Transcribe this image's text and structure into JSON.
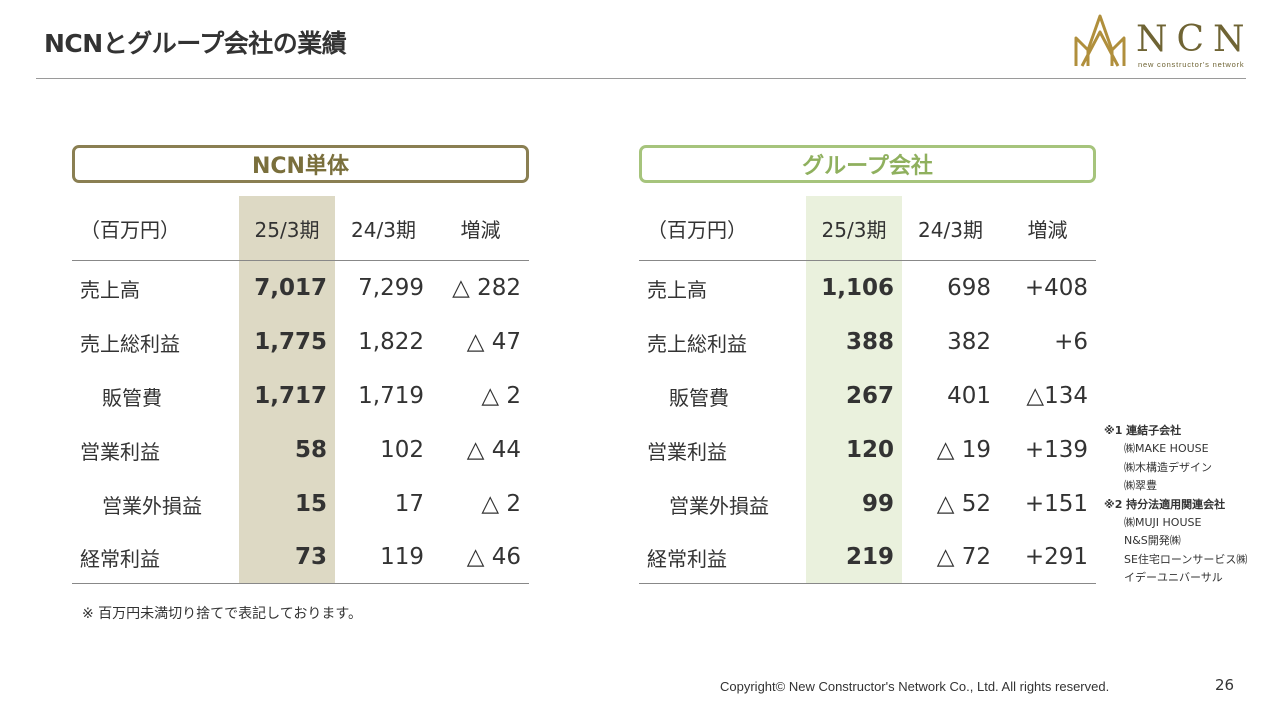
{
  "title": "NCNとグループ会社の業績",
  "logo": {
    "text": "NCN",
    "subtitle": "new constructor's network"
  },
  "colors": {
    "ncn_accent": "#8a7f52",
    "group_accent": "#a6c47c",
    "ncn_highlight": "#ddd9c4",
    "group_highlight": "#eaf1dd"
  },
  "ncn": {
    "header": "NCN単体",
    "columns": [
      "（百万円）",
      "25/3期",
      "24/3期",
      "増減"
    ],
    "rows": [
      {
        "label": "売上高",
        "cur": "7,017",
        "prev": "7,299",
        "diff": "△ 282"
      },
      {
        "label": "売上総利益",
        "cur": "1,775",
        "prev": "1,822",
        "diff": "△ 47"
      },
      {
        "label": "販管費",
        "cur": "1,717",
        "prev": "1,719",
        "diff": "△ 2"
      },
      {
        "label": "営業利益",
        "cur": "58",
        "prev": "102",
        "diff": "△ 44"
      },
      {
        "label": "営業外損益",
        "cur": "15",
        "prev": "17",
        "diff": "△ 2"
      },
      {
        "label": "経常利益",
        "cur": "73",
        "prev": "119",
        "diff": "△ 46"
      }
    ]
  },
  "group": {
    "header": "グループ会社",
    "columns": [
      "（百万円）",
      "25/3期",
      "24/3期",
      "増減"
    ],
    "rows": [
      {
        "label": "売上高",
        "cur": "1,106",
        "prev": "698",
        "diff": "+408"
      },
      {
        "label": "売上総利益",
        "cur": "388",
        "prev": "382",
        "diff": "+6"
      },
      {
        "label": "販管費",
        "cur": "267",
        "prev": "401",
        "diff": "△134"
      },
      {
        "label": "営業利益",
        "cur": "120",
        "prev": "△ 19",
        "diff": "+139"
      },
      {
        "label": "営業外損益",
        "cur": "99",
        "prev": "△ 52",
        "diff": "+151"
      },
      {
        "label": "経常利益",
        "cur": "219",
        "prev": "△ 72",
        "diff": "+291"
      }
    ]
  },
  "note": "※ 百万円未満切り捨てで表記しております。",
  "side_notes": {
    "h1": "※1 連結子会社",
    "subs": [
      "㈱MAKE HOUSE",
      "㈱木構造デザイン",
      "㈱翠豊"
    ],
    "h2": "※2 持分法適用関連会社",
    "affiliates": [
      "㈱MUJI HOUSE",
      "N&S開発㈱",
      "SE住宅ローンサービス㈱",
      "イデーユニバーサル"
    ]
  },
  "copyright": "Copyright© New Constructor's Network Co., Ltd. All rights reserved.",
  "page_number": "26"
}
